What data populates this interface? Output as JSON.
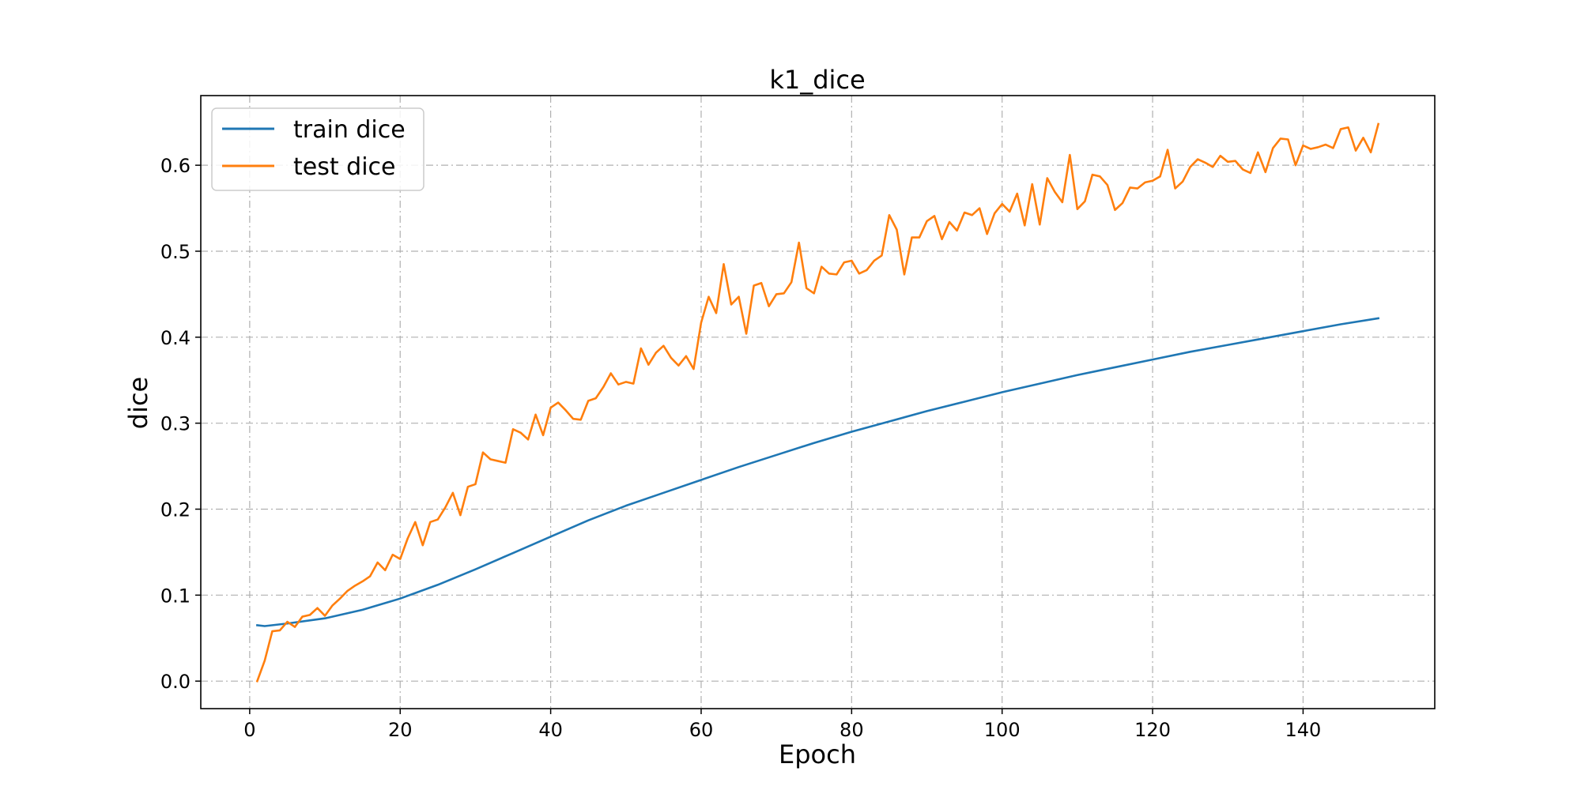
{
  "chart_data": {
    "type": "line",
    "title": "k1_dice",
    "xlabel": "Epoch",
    "ylabel": "dice",
    "xlim": [
      -6.5,
      157.5
    ],
    "ylim": [
      -0.032,
      0.681
    ],
    "xticks": [
      0,
      20,
      40,
      60,
      80,
      100,
      120,
      140
    ],
    "yticks": [
      0.0,
      0.1,
      0.2,
      0.3,
      0.4,
      0.5,
      0.6
    ],
    "ytick_labels": [
      "0.0",
      "0.1",
      "0.2",
      "0.3",
      "0.4",
      "0.5",
      "0.6"
    ],
    "grid": true,
    "legend_position": "upper left",
    "series": [
      {
        "name": "train dice",
        "color": "#1f77b4",
        "x": [
          1,
          2,
          5,
          10,
          15,
          20,
          25,
          30,
          35,
          40,
          45,
          50,
          55,
          60,
          65,
          70,
          75,
          80,
          85,
          90,
          95,
          100,
          105,
          110,
          115,
          120,
          125,
          130,
          135,
          140,
          145,
          150
        ],
        "values": [
          0.065,
          0.064,
          0.067,
          0.073,
          0.083,
          0.096,
          0.112,
          0.13,
          0.149,
          0.168,
          0.187,
          0.204,
          0.219,
          0.234,
          0.249,
          0.263,
          0.277,
          0.29,
          0.302,
          0.314,
          0.325,
          0.336,
          0.346,
          0.356,
          0.365,
          0.374,
          0.383,
          0.391,
          0.399,
          0.407,
          0.415,
          0.422
        ]
      },
      {
        "name": "test dice",
        "color": "#ff7f0e",
        "x": [
          1,
          2,
          3,
          4,
          5,
          6,
          7,
          8,
          9,
          10,
          11,
          12,
          13,
          14,
          15,
          16,
          17,
          18,
          19,
          20,
          21,
          22,
          23,
          24,
          25,
          26,
          27,
          28,
          29,
          30,
          31,
          32,
          33,
          34,
          35,
          36,
          37,
          38,
          39,
          40,
          41,
          42,
          43,
          44,
          45,
          46,
          47,
          48,
          49,
          50,
          51,
          52,
          53,
          54,
          55,
          56,
          57,
          58,
          59,
          60,
          61,
          62,
          63,
          64,
          65,
          66,
          67,
          68,
          69,
          70,
          71,
          72,
          73,
          74,
          75,
          76,
          77,
          78,
          79,
          80,
          81,
          82,
          83,
          84,
          85,
          86,
          87,
          88,
          89,
          90,
          91,
          92,
          93,
          94,
          95,
          96,
          97,
          98,
          99,
          100,
          101,
          102,
          103,
          104,
          105,
          106,
          107,
          108,
          109,
          110,
          111,
          112,
          113,
          114,
          115,
          116,
          117,
          118,
          119,
          120,
          121,
          122,
          123,
          124,
          125,
          126,
          127,
          128,
          129,
          130,
          131,
          132,
          133,
          134,
          135,
          136,
          137,
          138,
          139,
          140,
          141,
          142,
          143,
          144,
          145,
          146,
          147,
          148,
          149,
          150
        ],
        "values": [
          0.0,
          0.024,
          0.058,
          0.059,
          0.069,
          0.063,
          0.075,
          0.077,
          0.085,
          0.076,
          0.088,
          0.096,
          0.105,
          0.111,
          0.116,
          0.122,
          0.138,
          0.129,
          0.147,
          0.142,
          0.166,
          0.185,
          0.158,
          0.185,
          0.188,
          0.202,
          0.219,
          0.193,
          0.226,
          0.229,
          0.266,
          0.258,
          0.256,
          0.254,
          0.293,
          0.289,
          0.281,
          0.31,
          0.286,
          0.318,
          0.324,
          0.315,
          0.305,
          0.304,
          0.326,
          0.329,
          0.342,
          0.358,
          0.345,
          0.348,
          0.346,
          0.387,
          0.368,
          0.382,
          0.39,
          0.376,
          0.367,
          0.378,
          0.363,
          0.417,
          0.447,
          0.428,
          0.485,
          0.438,
          0.447,
          0.404,
          0.46,
          0.463,
          0.436,
          0.45,
          0.451,
          0.464,
          0.51,
          0.457,
          0.451,
          0.482,
          0.474,
          0.473,
          0.487,
          0.489,
          0.474,
          0.478,
          0.489,
          0.495,
          0.542,
          0.525,
          0.473,
          0.516,
          0.516,
          0.535,
          0.541,
          0.514,
          0.534,
          0.524,
          0.545,
          0.542,
          0.55,
          0.52,
          0.544,
          0.555,
          0.546,
          0.567,
          0.53,
          0.578,
          0.531,
          0.585,
          0.569,
          0.557,
          0.612,
          0.549,
          0.558,
          0.589,
          0.587,
          0.577,
          0.548,
          0.556,
          0.574,
          0.573,
          0.58,
          0.582,
          0.587,
          0.618,
          0.573,
          0.581,
          0.598,
          0.607,
          0.603,
          0.598,
          0.611,
          0.604,
          0.605,
          0.595,
          0.591,
          0.615,
          0.592,
          0.62,
          0.631,
          0.63,
          0.6,
          0.623,
          0.619,
          0.621,
          0.624,
          0.62,
          0.642,
          0.644,
          0.617,
          0.632,
          0.615,
          0.648
        ]
      }
    ]
  }
}
